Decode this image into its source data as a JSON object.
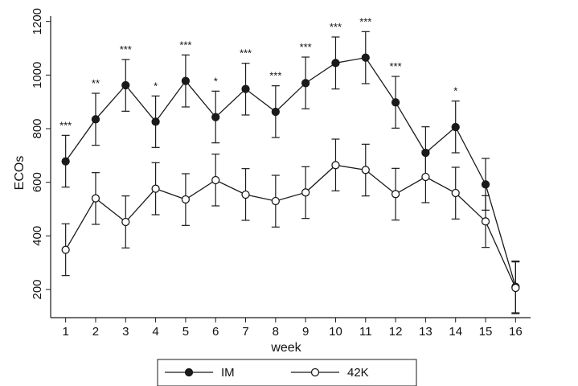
{
  "chart_data": {
    "type": "line",
    "xlabel": "week",
    "ylabel": "ECOs",
    "x": [
      1,
      2,
      3,
      4,
      5,
      6,
      7,
      8,
      9,
      10,
      11,
      12,
      13,
      14,
      15,
      16
    ],
    "xlim": [
      0.5,
      16.5
    ],
    "ylim": [
      95,
      1220
    ],
    "y_ticks": [
      200,
      400,
      600,
      800,
      1000,
      1200
    ],
    "grid": false,
    "legend_position": "bottom",
    "series": [
      {
        "name": "IM",
        "marker": "filled-circle",
        "color": "#1a1a1a",
        "values": [
          678,
          835,
          962,
          826,
          978,
          843,
          948,
          863,
          970,
          1045,
          1065,
          898,
          710,
          806,
          592,
          210
        ],
        "error_low": [
          582,
          738,
          865,
          730,
          881,
          747,
          851,
          767,
          874,
          948,
          968,
          802,
          614,
          710,
          496,
          113
        ],
        "error_high": [
          775,
          932,
          1058,
          922,
          1075,
          940,
          1044,
          960,
          1067,
          1142,
          1162,
          995,
          807,
          903,
          689,
          306
        ]
      },
      {
        "name": "42K",
        "marker": "open-circle",
        "color": "#1a1a1a",
        "values": [
          348,
          540,
          452,
          576,
          536,
          608,
          554,
          530,
          562,
          664,
          646,
          556,
          620,
          560,
          454,
          206
        ],
        "error_low": [
          252,
          443,
          355,
          479,
          439,
          512,
          458,
          433,
          465,
          568,
          549,
          459,
          524,
          463,
          357,
          110
        ],
        "error_high": [
          445,
          636,
          549,
          673,
          632,
          705,
          651,
          626,
          658,
          761,
          742,
          652,
          717,
          656,
          550,
          303
        ]
      }
    ],
    "annotations": [
      "***",
      "**",
      "***",
      "*",
      "***",
      "*",
      "***",
      "***",
      "***",
      "***",
      "***",
      "***",
      "",
      "*",
      "",
      ""
    ]
  }
}
